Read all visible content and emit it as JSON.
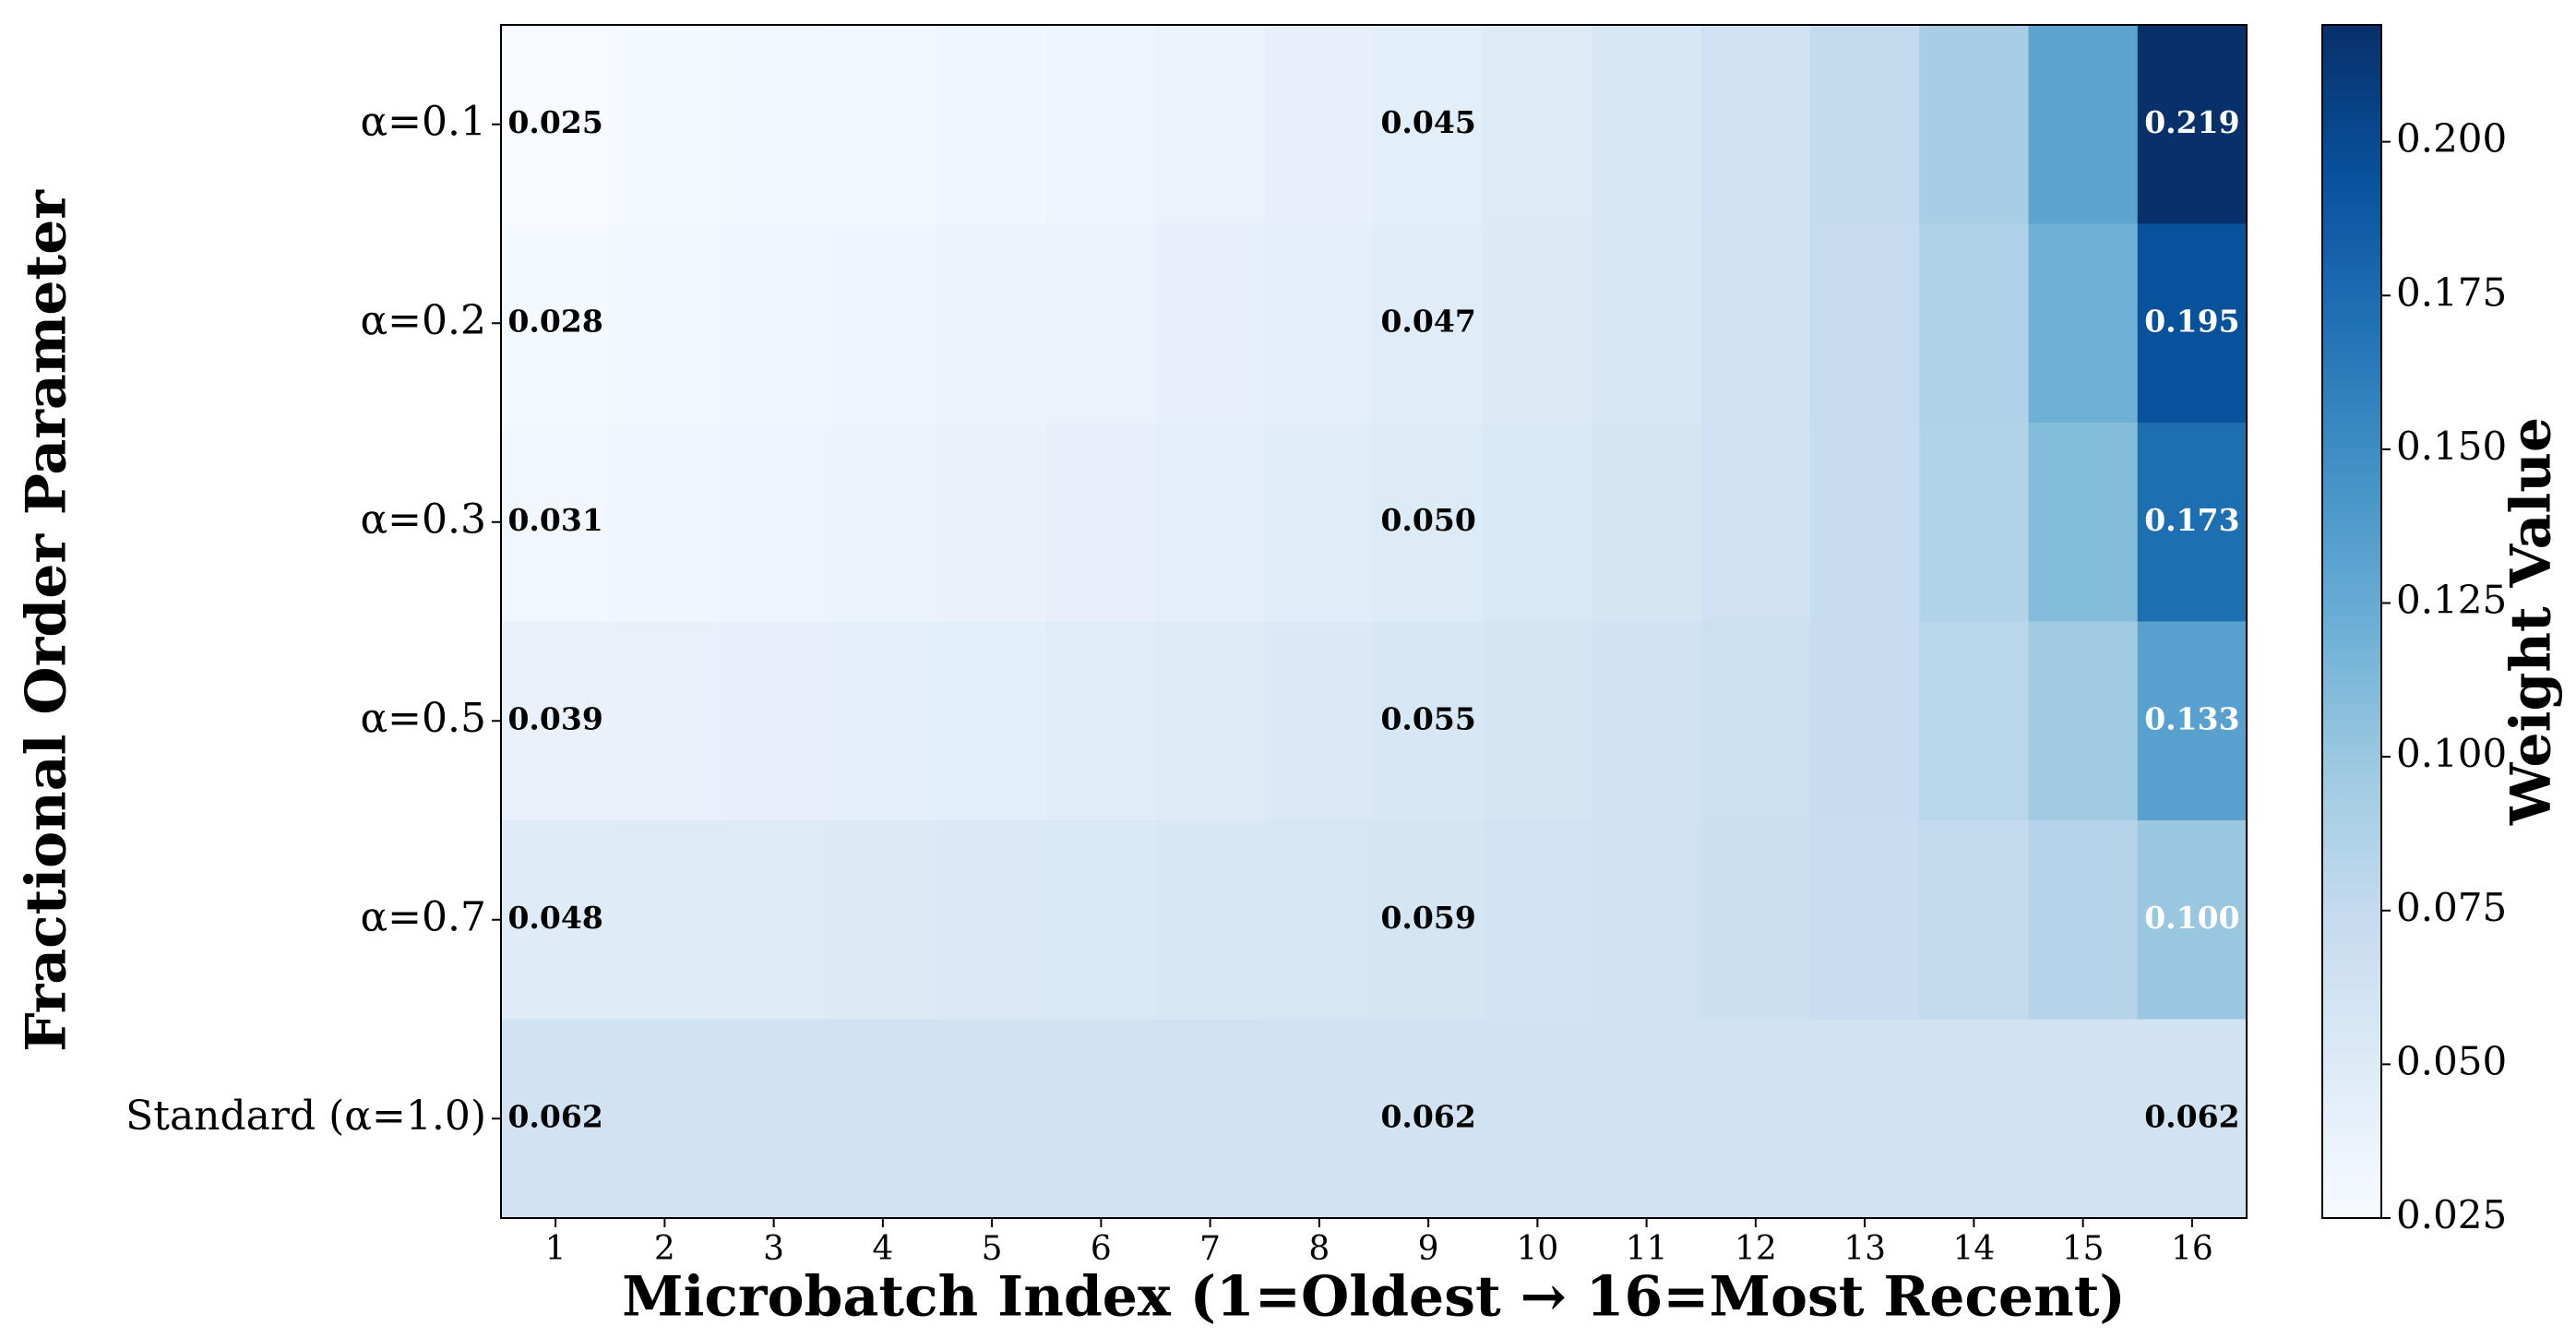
{
  "chart_data": {
    "type": "heatmap",
    "xlabel": "Microbatch Index (1=Oldest → 16=Most Recent)",
    "ylabel": "Fractional Order Parameter",
    "categories": [
      "1",
      "2",
      "3",
      "4",
      "5",
      "6",
      "7",
      "8",
      "9",
      "10",
      "11",
      "12",
      "13",
      "14",
      "15",
      "16"
    ],
    "y_categories": [
      "α=0.1",
      "α=0.2",
      "α=0.3",
      "α=0.5",
      "α=0.7",
      "Standard (α=1.0)"
    ],
    "values": [
      [
        0.025,
        0.027,
        0.029,
        0.031,
        0.033,
        0.035,
        0.038,
        0.041,
        0.045,
        0.05,
        0.056,
        0.064,
        0.075,
        0.092,
        0.13,
        0.219
      ],
      [
        0.028,
        0.03,
        0.032,
        0.034,
        0.036,
        0.038,
        0.041,
        0.044,
        0.047,
        0.051,
        0.056,
        0.063,
        0.073,
        0.088,
        0.12,
        0.195
      ],
      [
        0.031,
        0.033,
        0.035,
        0.037,
        0.039,
        0.041,
        0.044,
        0.047,
        0.05,
        0.054,
        0.058,
        0.064,
        0.072,
        0.085,
        0.11,
        0.173
      ],
      [
        0.039,
        0.04,
        0.041,
        0.043,
        0.045,
        0.047,
        0.049,
        0.052,
        0.055,
        0.058,
        0.062,
        0.066,
        0.072,
        0.081,
        0.096,
        0.133
      ],
      [
        0.048,
        0.049,
        0.05,
        0.051,
        0.052,
        0.054,
        0.055,
        0.057,
        0.059,
        0.061,
        0.064,
        0.067,
        0.071,
        0.076,
        0.084,
        0.1
      ],
      [
        0.062,
        0.062,
        0.062,
        0.062,
        0.062,
        0.062,
        0.062,
        0.062,
        0.062,
        0.062,
        0.062,
        0.062,
        0.062,
        0.062,
        0.062,
        0.062
      ]
    ],
    "value_labels": [
      [
        "0.025",
        null,
        null,
        null,
        null,
        null,
        null,
        null,
        "0.045",
        null,
        null,
        null,
        null,
        null,
        null,
        "0.219"
      ],
      [
        "0.028",
        null,
        null,
        null,
        null,
        null,
        null,
        null,
        "0.047",
        null,
        null,
        null,
        null,
        null,
        null,
        "0.195"
      ],
      [
        "0.031",
        null,
        null,
        null,
        null,
        null,
        null,
        null,
        "0.050",
        null,
        null,
        null,
        null,
        null,
        null,
        "0.173"
      ],
      [
        "0.039",
        null,
        null,
        null,
        null,
        null,
        null,
        null,
        "0.055",
        null,
        null,
        null,
        null,
        null,
        null,
        "0.133"
      ],
      [
        "0.048",
        null,
        null,
        null,
        null,
        null,
        null,
        null,
        "0.059",
        null,
        null,
        null,
        null,
        null,
        null,
        "0.100"
      ],
      [
        "0.062",
        null,
        null,
        null,
        null,
        null,
        null,
        null,
        "0.062",
        null,
        null,
        null,
        null,
        null,
        null,
        "0.062"
      ]
    ],
    "colormap": "Blues",
    "colorbar": {
      "label": "Weight Value",
      "lim": [
        0.025,
        0.219
      ],
      "ticks": [
        0.025,
        {
          "value": 0.05,
          "label": "0.050"
        },
        0.075,
        {
          "value": 0.1,
          "label": "0.100"
        },
        0.125,
        {
          "value": 0.15,
          "label": "0.150"
        },
        0.175,
        {
          "value": 0.2,
          "label": "0.200"
        }
      ]
    }
  }
}
